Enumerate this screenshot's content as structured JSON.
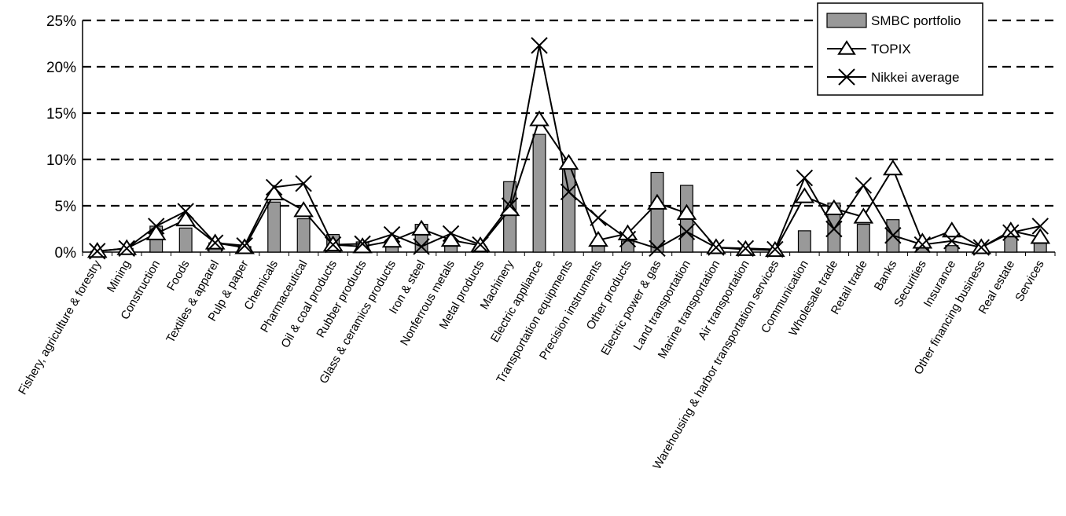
{
  "chart_data": {
    "type": "bar",
    "categories": [
      "Fishery, agriculture & forestry",
      "Mining",
      "Construction",
      "Foods",
      "Textiles & apparel",
      "Pulp & paper",
      "Chemicals",
      "Pharmaceutical",
      "Oil & coal products",
      "Rubber products",
      "Glass & ceramics products",
      "Iron & steel",
      "Nonferrous metals",
      "Metal products",
      "Machinery",
      "Electric appliance",
      "Transportation equipments",
      "Precision instruments",
      "Other products",
      "Electric power & gas",
      "Land transportation",
      "Marine transportation",
      "Air transportation",
      "Warehousing & harbor transportation services",
      "Communication",
      "Wholesale trade",
      "Retail trade",
      "Banks",
      "Securities",
      "Insurance",
      "Other financing business",
      "Real estate",
      "Services"
    ],
    "series": [
      {
        "name": "SMBC portfolio",
        "kind": "bar",
        "values": [
          0.1,
          0.4,
          2.8,
          2.6,
          1.0,
          0.6,
          5.4,
          3.6,
          1.9,
          1.1,
          1.3,
          3.0,
          1.2,
          0.6,
          7.6,
          12.7,
          9.3,
          0.8,
          1.2,
          8.6,
          7.2,
          0.4,
          0.3,
          0.2,
          2.3,
          5.3,
          3.0,
          3.5,
          0.8,
          0.7,
          0.3,
          2.0,
          1.0
        ]
      },
      {
        "name": "TOPIX",
        "kind": "line",
        "marker": "triangle",
        "values": [
          0.1,
          0.4,
          2.0,
          3.5,
          1.0,
          0.5,
          6.3,
          4.5,
          0.8,
          0.6,
          1.2,
          2.5,
          1.3,
          0.7,
          4.6,
          14.3,
          9.6,
          1.3,
          2.0,
          5.3,
          4.2,
          0.5,
          0.3,
          0.2,
          6.0,
          4.7,
          3.8,
          9.0,
          1.1,
          2.3,
          0.5,
          2.3,
          1.6
        ]
      },
      {
        "name": "Nikkei average",
        "kind": "line",
        "marker": "x",
        "values": [
          0.1,
          0.4,
          2.8,
          4.4,
          1.0,
          0.7,
          7.0,
          7.4,
          0.8,
          0.9,
          1.9,
          0.6,
          2.0,
          0.8,
          5.0,
          22.3,
          6.5,
          3.7,
          1.4,
          0.4,
          2.2,
          0.5,
          0.4,
          0.3,
          8.0,
          2.5,
          7.2,
          1.8,
          0.8,
          1.2,
          0.5,
          2.1,
          2.8
        ]
      }
    ],
    "ylim": [
      0,
      25
    ],
    "yticks": [
      0,
      5,
      10,
      15,
      20,
      25
    ],
    "ytick_labels": [
      "0%",
      "5%",
      "10%",
      "15%",
      "20%",
      "25%"
    ],
    "grid": "dashed horizontal",
    "legend_position": "top-right",
    "colors": {
      "bar": "#999999",
      "line": "#000000"
    }
  }
}
